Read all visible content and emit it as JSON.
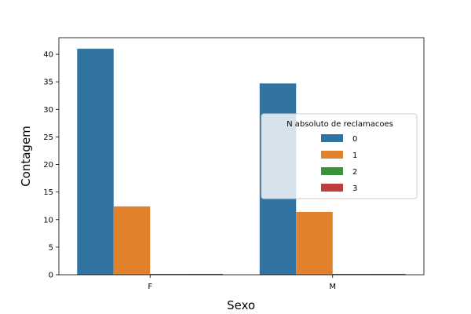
{
  "chart_data": {
    "type": "bar",
    "title": "",
    "xlabel": "Sexo",
    "ylabel": "Contagem",
    "categories": [
      "F",
      "M"
    ],
    "ylim": [
      0,
      43
    ],
    "yticks": [
      0,
      5,
      10,
      15,
      20,
      25,
      30,
      35,
      40
    ],
    "grid": false,
    "legend": {
      "title": "N absoluto de reclamacoes",
      "placement": "center-right"
    },
    "series": [
      {
        "name": "0",
        "color": "#3274a1",
        "values": [
          41,
          34.7
        ]
      },
      {
        "name": "1",
        "color": "#e1812c",
        "values": [
          12.4,
          11.4
        ]
      },
      {
        "name": "2",
        "color": "#3a923a",
        "values": [
          0.15,
          0.15
        ]
      },
      {
        "name": "3",
        "color": "#c03d3e",
        "values": [
          0.15,
          0.15
        ]
      }
    ]
  }
}
